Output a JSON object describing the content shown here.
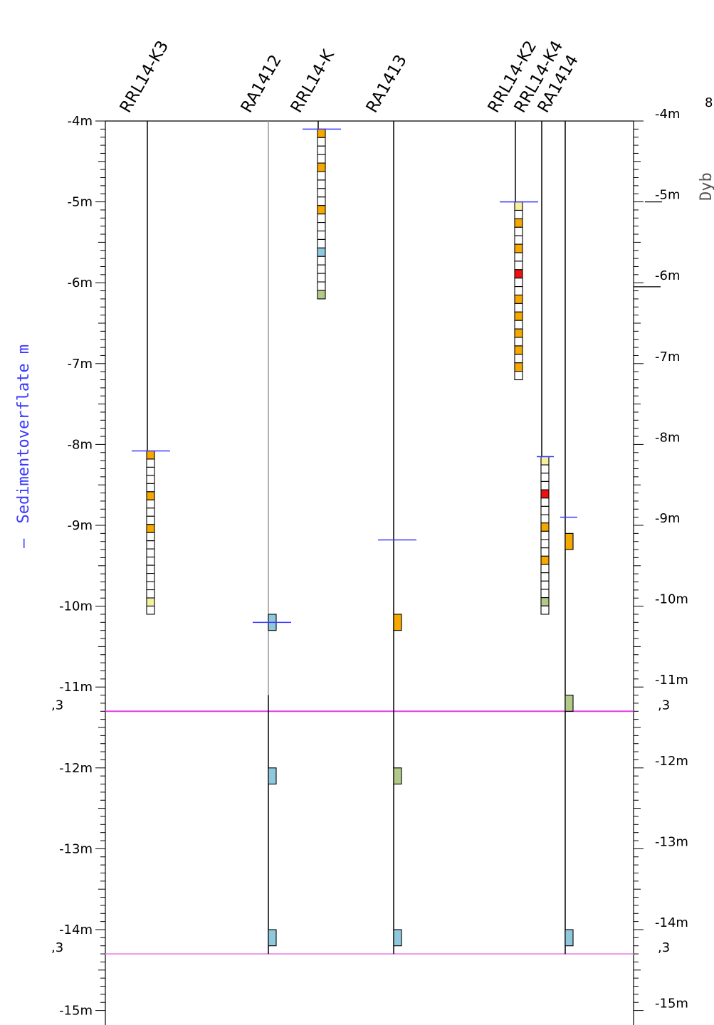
{
  "colors": {
    "frame": "#000000",
    "sediment_marker": "#3a3aff",
    "horizon_upper": "#e040e0",
    "horizon_lower": "#ec96ec",
    "orange": "#f5a800",
    "blue": "#8fc8dc",
    "green": "#b3c98a",
    "yellow": "#f5f0a0",
    "red": "#ee1111",
    "white": "#ffffff"
  },
  "left_axis": {
    "labels": [
      "-4m",
      "-5m",
      "-6m",
      "-7m",
      "-8m",
      "-9m",
      "-10m",
      "-11m",
      "-12m",
      "-13m",
      "-14m",
      "-15m"
    ],
    "values": [
      -4,
      -5,
      -6,
      -7,
      -8,
      -9,
      -10,
      -11,
      -12,
      -13,
      -14,
      -15
    ]
  },
  "right_axis": {
    "labels": [
      "-4m",
      "-5m",
      "-6m",
      "-7m",
      "-8m",
      "-9m",
      "-10m",
      "-11m",
      "-12m",
      "-13m",
      "-14m",
      "-15m"
    ],
    "values": [
      -4,
      -5,
      -6,
      -7,
      -8,
      -9,
      -10,
      -11,
      -12,
      -13,
      -14,
      -15
    ],
    "partial_title": "Dyb",
    "partial_symbol": "8"
  },
  "legend": {
    "label": "Sedimentoverflate m",
    "dash": "—"
  },
  "horizons": [
    {
      "depth": -11.3,
      "label": ",3",
      "color_key": "horizon_upper"
    },
    {
      "depth": -14.3,
      "label": ",3",
      "color_key": "horizon_lower"
    }
  ],
  "boreholes": [
    {
      "name": "RRL14-K3",
      "line_top": -4.0,
      "line_bottom": -10.1,
      "sediment_surface": -8.08,
      "cells": {
        "start": -8.08,
        "end": -10.1,
        "count": 20,
        "colors": {
          "0": "orange",
          "5": "orange",
          "9": "orange",
          "18": "yellow"
        }
      }
    },
    {
      "name": "RA1412",
      "line_top": -4.0,
      "line_bottom": -14.3,
      "sediment_surface": -10.2,
      "samples": [
        {
          "top": -10.1,
          "bottom": -10.3,
          "color": "blue"
        },
        {
          "top": -12.0,
          "bottom": -12.2,
          "color": "blue"
        },
        {
          "top": -14.0,
          "bottom": -14.2,
          "color": "blue"
        }
      ]
    },
    {
      "name": "RRL14-K",
      "line_top": -4.0,
      "line_bottom": -6.2,
      "sediment_surface": -4.1,
      "cells": {
        "start": -4.1,
        "end": -6.2,
        "count": 20,
        "colors": {
          "0": "orange",
          "4": "orange",
          "9": "orange",
          "14": "blue",
          "19": "green"
        }
      }
    },
    {
      "name": "RA1413",
      "line_top": -4.0,
      "line_bottom": -14.3,
      "sediment_surface": -9.18,
      "samples": [
        {
          "top": -10.1,
          "bottom": -10.3,
          "color": "orange"
        },
        {
          "top": -12.0,
          "bottom": -12.2,
          "color": "green"
        },
        {
          "top": -14.0,
          "bottom": -14.2,
          "color": "blue"
        }
      ]
    },
    {
      "name": "RRL14-K2",
      "line_top": -4.0,
      "line_bottom": -7.2,
      "sediment_surface": -5.0,
      "cells": {
        "start": -5.0,
        "end": -7.2,
        "count": 21,
        "colors": {
          "0": "yellow",
          "2": "orange",
          "5": "orange",
          "8": "red",
          "11": "orange",
          "13": "orange",
          "15": "orange",
          "17": "orange",
          "19": "orange"
        }
      }
    },
    {
      "name": "RRL14-K4",
      "line_top": -4.0,
      "line_bottom": -10.1,
      "sediment_surface": -8.15,
      "cells": {
        "start": -8.15,
        "end": -10.1,
        "count": 19,
        "colors": {
          "0": "yellow",
          "4": "red",
          "8": "orange",
          "12": "orange",
          "17": "green"
        }
      }
    },
    {
      "name": "RA1414",
      "line_top": -4.0,
      "line_bottom": -14.3,
      "sediment_surface": -8.9,
      "samples": [
        {
          "top": -9.1,
          "bottom": -9.3,
          "color": "orange"
        },
        {
          "top": -11.1,
          "bottom": -11.3,
          "color": "green"
        },
        {
          "top": -14.0,
          "bottom": -14.2,
          "color": "blue"
        }
      ]
    }
  ]
}
